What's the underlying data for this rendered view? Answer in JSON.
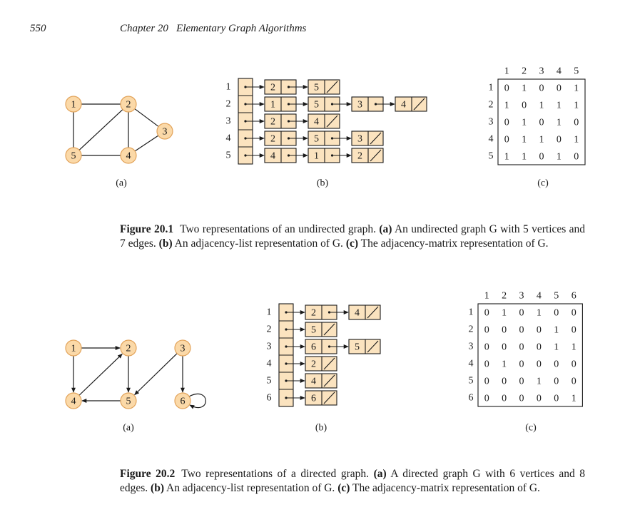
{
  "header": {
    "page_number": "550",
    "running_title": "Chapter 20   Elementary Graph Algorithms"
  },
  "colors": {
    "vertex_fill": "#fbd9a8",
    "vertex_stroke": "#e2a35a",
    "cell_fill": "#fbe3bf",
    "line": "#1a1a1a"
  },
  "fig1": {
    "graph": {
      "vertices": [
        "1",
        "2",
        "3",
        "4",
        "5"
      ],
      "edges": [
        [
          "1",
          "2"
        ],
        [
          "1",
          "5"
        ],
        [
          "2",
          "5"
        ],
        [
          "2",
          "4"
        ],
        [
          "2",
          "3"
        ],
        [
          "3",
          "4"
        ],
        [
          "4",
          "5"
        ]
      ]
    },
    "lists": [
      {
        "vertex": "1",
        "nodes": [
          "2",
          "5"
        ]
      },
      {
        "vertex": "2",
        "nodes": [
          "1",
          "5",
          "3",
          "4"
        ]
      },
      {
        "vertex": "3",
        "nodes": [
          "2",
          "4"
        ]
      },
      {
        "vertex": "4",
        "nodes": [
          "2",
          "5",
          "3"
        ]
      },
      {
        "vertex": "5",
        "nodes": [
          "4",
          "1",
          "2"
        ]
      }
    ],
    "matrix": {
      "labels": [
        "1",
        "2",
        "3",
        "4",
        "5"
      ],
      "rows": [
        [
          "0",
          "1",
          "0",
          "0",
          "1"
        ],
        [
          "1",
          "0",
          "1",
          "1",
          "1"
        ],
        [
          "0",
          "1",
          "0",
          "1",
          "0"
        ],
        [
          "0",
          "1",
          "1",
          "0",
          "1"
        ],
        [
          "1",
          "1",
          "0",
          "1",
          "0"
        ]
      ]
    },
    "part_labels": [
      "(a)",
      "(b)",
      "(c)"
    ],
    "caption": {
      "label": "Figure 20.1",
      "parts": [
        {
          "b": "",
          "t": "Two representations of an undirected graph. "
        },
        {
          "b": "(a)",
          "t": " An undirected graph G with 5 vertices and 7 edges. "
        },
        {
          "b": "(b)",
          "t": " An adjacency-list representation of G. "
        },
        {
          "b": "(c)",
          "t": " The adjacency-matrix representation of G."
        }
      ]
    }
  },
  "fig2": {
    "graph": {
      "vertices": [
        "1",
        "2",
        "3",
        "4",
        "5",
        "6"
      ],
      "edges": [
        [
          "1",
          "2"
        ],
        [
          "1",
          "4"
        ],
        [
          "2",
          "5"
        ],
        [
          "3",
          "5"
        ],
        [
          "3",
          "6"
        ],
        [
          "4",
          "2"
        ],
        [
          "5",
          "4"
        ],
        [
          "6",
          "6"
        ]
      ]
    },
    "lists": [
      {
        "vertex": "1",
        "nodes": [
          "2",
          "4"
        ]
      },
      {
        "vertex": "2",
        "nodes": [
          "5"
        ]
      },
      {
        "vertex": "3",
        "nodes": [
          "6",
          "5"
        ]
      },
      {
        "vertex": "4",
        "nodes": [
          "2"
        ]
      },
      {
        "vertex": "5",
        "nodes": [
          "4"
        ]
      },
      {
        "vertex": "6",
        "nodes": [
          "6"
        ]
      }
    ],
    "matrix": {
      "labels": [
        "1",
        "2",
        "3",
        "4",
        "5",
        "6"
      ],
      "rows": [
        [
          "0",
          "1",
          "0",
          "1",
          "0",
          "0"
        ],
        [
          "0",
          "0",
          "0",
          "0",
          "1",
          "0"
        ],
        [
          "0",
          "0",
          "0",
          "0",
          "1",
          "1"
        ],
        [
          "0",
          "1",
          "0",
          "0",
          "0",
          "0"
        ],
        [
          "0",
          "0",
          "0",
          "1",
          "0",
          "0"
        ],
        [
          "0",
          "0",
          "0",
          "0",
          "0",
          "1"
        ]
      ]
    },
    "part_labels": [
      "(a)",
      "(b)",
      "(c)"
    ],
    "caption": {
      "label": "Figure 20.2",
      "parts": [
        {
          "b": "",
          "t": "Two representations of a directed graph. "
        },
        {
          "b": "(a)",
          "t": " A directed graph G with 6 vertices and 8 edges. "
        },
        {
          "b": "(b)",
          "t": " An adjacency-list representation of G. "
        },
        {
          "b": "(c)",
          "t": " The adjacency-matrix representation of G."
        }
      ]
    }
  }
}
